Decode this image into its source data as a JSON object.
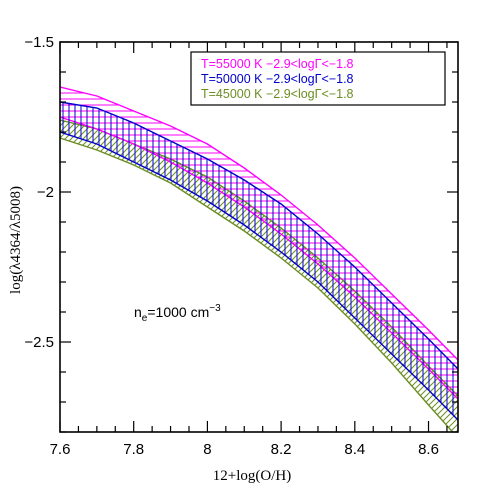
{
  "chart_data": {
    "type": "area",
    "xlabel": "12+log(O/H)",
    "ylabel": "log(λ4364/λ5008)",
    "xlim": [
      7.6,
      8.68
    ],
    "ylim": [
      -2.8,
      -1.5
    ],
    "xticks": [
      7.6,
      7.8,
      8,
      8.2,
      8.4,
      8.6
    ],
    "xtick_labels": [
      "7.6",
      "7.8",
      "8",
      "8.2",
      "8.4",
      "8.6"
    ],
    "yticks": [
      -1.5,
      -2,
      -2.5
    ],
    "ytick_labels": [
      "−1.5",
      "−2",
      "−2.5"
    ],
    "grid": false,
    "legend_position": "top-right",
    "legend_lines": [
      {
        "label": "T=55000 K  −2.9<logΓ<−1.8",
        "color": "#ff00ff"
      },
      {
        "label": "T=50000 K  −2.9<logΓ<−1.8",
        "color": "#0000cc"
      },
      {
        "label": "T=45000 K  −2.9<logΓ<−1.8",
        "color": "#6b8e23"
      }
    ],
    "annotation": {
      "text_main": "n",
      "subscript": "e",
      "text_rest": "=1000 cm",
      "superscript": "−3"
    },
    "x": [
      7.6,
      7.7,
      7.8,
      7.9,
      8.0,
      8.1,
      8.2,
      8.3,
      8.4,
      8.5,
      8.6,
      8.68
    ],
    "series": [
      {
        "name": "T=55000 K  −2.9<logΓ<−1.8",
        "color": "#ff00ff",
        "hatch": "horizontal",
        "upper": [
          -1.65,
          -1.68,
          -1.73,
          -1.78,
          -1.84,
          -1.92,
          -2.01,
          -2.11,
          -2.22,
          -2.34,
          -2.46,
          -2.56
        ],
        "lower": [
          -1.75,
          -1.79,
          -1.84,
          -1.9,
          -1.97,
          -2.05,
          -2.14,
          -2.24,
          -2.35,
          -2.47,
          -2.59,
          -2.69
        ]
      },
      {
        "name": "T=50000 K  −2.9<logΓ<−1.8",
        "color": "#0000cc",
        "hatch": "vertical",
        "upper": [
          -1.7,
          -1.72,
          -1.77,
          -1.83,
          -1.89,
          -1.96,
          -2.04,
          -2.14,
          -2.25,
          -2.37,
          -2.49,
          -2.59
        ],
        "lower": [
          -1.8,
          -1.84,
          -1.9,
          -1.96,
          -2.03,
          -2.11,
          -2.2,
          -2.3,
          -2.42,
          -2.54,
          -2.66,
          -2.76
        ]
      },
      {
        "name": "T=45000 K  −2.9<logΓ<−1.8",
        "color": "#6b8e23",
        "hatch": "diagonal",
        "upper": [
          -1.76,
          -1.79,
          -1.84,
          -1.89,
          -1.95,
          -2.03,
          -2.12,
          -2.22,
          -2.33,
          -2.45,
          -2.58,
          -2.68
        ],
        "lower": [
          -1.82,
          -1.86,
          -1.91,
          -1.97,
          -2.05,
          -2.13,
          -2.22,
          -2.32,
          -2.44,
          -2.57,
          -2.71,
          -2.82
        ]
      }
    ]
  }
}
